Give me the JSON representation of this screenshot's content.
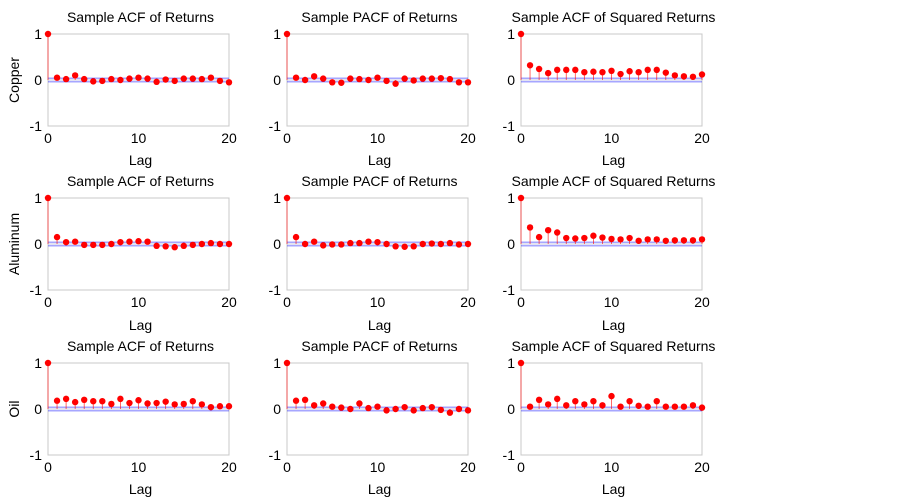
{
  "chart_data": {
    "type": "stem",
    "row_labels": [
      "Copper",
      "Aluminum",
      "Oil"
    ],
    "x_tick_labels": [
      "0",
      "10",
      "20"
    ],
    "y_tick_labels": [
      "1",
      "0",
      "-1"
    ],
    "xlim": [
      0,
      20
    ],
    "ylim": [
      -1,
      1
    ],
    "colors": {
      "marker": "#ff0000",
      "stem": "#ff0000",
      "bounds": "#0000ff",
      "frame": "#c8c8c8"
    },
    "panels": [
      {
        "row": "Copper",
        "title": "Sample ACF of Returns",
        "xlabel": "Lag",
        "lags": [
          0,
          1,
          2,
          3,
          4,
          5,
          6,
          7,
          8,
          9,
          10,
          11,
          12,
          13,
          14,
          15,
          16,
          17,
          18,
          19,
          20
        ],
        "values": [
          1,
          0.05,
          0.02,
          0.1,
          0.02,
          -0.03,
          -0.02,
          0.02,
          0.0,
          0.03,
          0.05,
          0.03,
          -0.04,
          0.01,
          -0.02,
          0.03,
          0.03,
          0.02,
          0.05,
          -0.02,
          -0.05
        ],
        "bounds": [
          0.04,
          -0.04
        ]
      },
      {
        "row": "Copper",
        "title": "Sample PACF of Returns",
        "xlabel": "Lag",
        "lags": [
          0,
          1,
          2,
          3,
          4,
          5,
          6,
          7,
          8,
          9,
          10,
          11,
          12,
          13,
          14,
          15,
          16,
          17,
          18,
          19,
          20
        ],
        "values": [
          1,
          0.05,
          0.0,
          0.08,
          0.03,
          -0.05,
          -0.06,
          0.03,
          0.02,
          0.0,
          0.05,
          -0.02,
          -0.08,
          0.03,
          -0.01,
          0.03,
          0.03,
          0.04,
          0.02,
          -0.05,
          -0.05
        ],
        "bounds": [
          0.04,
          -0.04
        ]
      },
      {
        "row": "Copper",
        "title": "Sample ACF of Squared Returns",
        "xlabel": "Lag",
        "lags": [
          0,
          1,
          2,
          3,
          4,
          5,
          6,
          7,
          8,
          9,
          10,
          11,
          12,
          13,
          14,
          15,
          16,
          17,
          18,
          19,
          20
        ],
        "values": [
          1,
          0.32,
          0.24,
          0.15,
          0.22,
          0.22,
          0.22,
          0.17,
          0.18,
          0.17,
          0.2,
          0.13,
          0.19,
          0.17,
          0.22,
          0.22,
          0.16,
          0.1,
          0.08,
          0.07,
          0.12
        ],
        "bounds": [
          0.04,
          -0.04
        ]
      },
      {
        "row": "Aluminum",
        "title": "Sample ACF of Returns",
        "xlabel": "Lag",
        "lags": [
          0,
          1,
          2,
          3,
          4,
          5,
          6,
          7,
          8,
          9,
          10,
          11,
          12,
          13,
          14,
          15,
          16,
          17,
          18,
          19,
          20
        ],
        "values": [
          1,
          0.15,
          0.04,
          0.05,
          -0.02,
          -0.02,
          -0.02,
          0.0,
          0.04,
          0.05,
          0.06,
          0.05,
          -0.04,
          -0.05,
          -0.07,
          -0.04,
          -0.02,
          0.0,
          0.02,
          0.0,
          0.0
        ],
        "bounds": [
          0.04,
          -0.04
        ]
      },
      {
        "row": "Aluminum",
        "title": "Sample PACF of Returns",
        "xlabel": "Lag",
        "lags": [
          0,
          1,
          2,
          3,
          4,
          5,
          6,
          7,
          8,
          9,
          10,
          11,
          12,
          13,
          14,
          15,
          16,
          17,
          18,
          19,
          20
        ],
        "values": [
          1,
          0.15,
          0.0,
          0.05,
          -0.03,
          -0.01,
          -0.01,
          0.02,
          0.02,
          0.05,
          0.04,
          0.0,
          -0.05,
          -0.06,
          -0.05,
          0.0,
          0.01,
          0.0,
          0.02,
          -0.01,
          0.0
        ],
        "bounds": [
          0.04,
          -0.04
        ]
      },
      {
        "row": "Aluminum",
        "title": "Sample ACF of Squared Returns",
        "xlabel": "Lag",
        "lags": [
          0,
          1,
          2,
          3,
          4,
          5,
          6,
          7,
          8,
          9,
          10,
          11,
          12,
          13,
          14,
          15,
          16,
          17,
          18,
          19,
          20
        ],
        "values": [
          1,
          0.36,
          0.15,
          0.3,
          0.25,
          0.13,
          0.12,
          0.13,
          0.18,
          0.14,
          0.11,
          0.1,
          0.13,
          0.07,
          0.1,
          0.1,
          0.07,
          0.08,
          0.08,
          0.08,
          0.1
        ],
        "bounds": [
          0.04,
          -0.04
        ]
      },
      {
        "row": "Oil",
        "title": "Sample ACF of Returns",
        "xlabel": "Lag",
        "lags": [
          0,
          1,
          2,
          3,
          4,
          5,
          6,
          7,
          8,
          9,
          10,
          11,
          12,
          13,
          14,
          15,
          16,
          17,
          18,
          19,
          20
        ],
        "values": [
          1,
          0.18,
          0.22,
          0.15,
          0.2,
          0.17,
          0.17,
          0.11,
          0.22,
          0.13,
          0.19,
          0.12,
          0.13,
          0.16,
          0.1,
          0.11,
          0.17,
          0.1,
          0.04,
          0.06,
          0.06
        ],
        "bounds": [
          0.04,
          -0.04
        ]
      },
      {
        "row": "Oil",
        "title": "Sample PACF of Returns",
        "xlabel": "Lag",
        "lags": [
          0,
          1,
          2,
          3,
          4,
          5,
          6,
          7,
          8,
          9,
          10,
          11,
          12,
          13,
          14,
          15,
          16,
          17,
          18,
          19,
          20
        ],
        "values": [
          1,
          0.18,
          0.2,
          0.08,
          0.12,
          0.05,
          0.03,
          0.0,
          0.12,
          0.02,
          0.05,
          -0.03,
          0.0,
          0.04,
          -0.03,
          0.02,
          0.04,
          -0.02,
          -0.08,
          0.0,
          -0.03
        ],
        "bounds": [
          0.04,
          -0.04
        ]
      },
      {
        "row": "Oil",
        "title": "Sample ACF of Squared Returns",
        "xlabel": "Lag",
        "lags": [
          0,
          1,
          2,
          3,
          4,
          5,
          6,
          7,
          8,
          9,
          10,
          11,
          12,
          13,
          14,
          15,
          16,
          17,
          18,
          19,
          20
        ],
        "values": [
          1,
          0.05,
          0.2,
          0.1,
          0.22,
          0.08,
          0.17,
          0.1,
          0.17,
          0.08,
          0.28,
          0.05,
          0.17,
          0.07,
          0.05,
          0.17,
          0.05,
          0.05,
          0.05,
          0.08,
          0.03
        ],
        "bounds": [
          0.04,
          -0.04
        ]
      }
    ]
  }
}
